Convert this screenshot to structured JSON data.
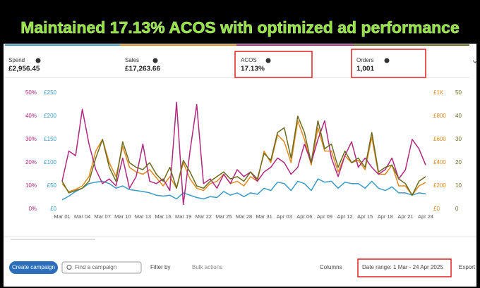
{
  "header": {
    "title": "Maintained 17.13% ACOS with optimized ad performance"
  },
  "metrics": [
    {
      "name": "Spend",
      "value": "£2,956.45"
    },
    {
      "name": "Sales",
      "value": "£17,263.66"
    },
    {
      "name": "ACOS",
      "value": "17.13%"
    },
    {
      "name": "Orders",
      "value": "1,001"
    }
  ],
  "chart_data": {
    "type": "line",
    "categories": [
      "Mar 01",
      null,
      null,
      "Mar 04",
      null,
      null,
      "Mar 07",
      null,
      null,
      "Mar 10",
      null,
      null,
      "Mar 13",
      null,
      null,
      "Mar 16",
      null,
      null,
      "Mar 19",
      null,
      null,
      "Mar 22",
      null,
      null,
      "Mar 25",
      null,
      null,
      "Mar 28",
      null,
      null,
      "Mar 31",
      null,
      null,
      "Apr 03",
      null,
      null,
      "Apr 06",
      null,
      null,
      "Apr 09",
      null,
      null,
      "Apr 12",
      null,
      null,
      "Apr 15",
      null,
      null,
      "Apr 18",
      null,
      null,
      "Apr 21",
      null,
      null,
      "Apr 24"
    ],
    "ylim": [
      0,
      50
    ],
    "yticks": [
      {
        "value": 0,
        "label": "0%"
      },
      {
        "value": 10,
        "label": "10%"
      },
      {
        "value": 20,
        "label": "20%"
      },
      {
        "value": 30,
        "label": "30%"
      },
      {
        "value": 40,
        "label": "40%"
      },
      {
        "value": 50,
        "label": "50%"
      }
    ],
    "ycolor": "#b0287f",
    "y2lim": [
      0,
      250
    ],
    "y2ticks": [
      {
        "value": 0,
        "label": "£0"
      },
      {
        "value": 50,
        "label": "£50"
      },
      {
        "value": 100,
        "label": "£100"
      },
      {
        "value": 150,
        "label": "£150"
      },
      {
        "value": 200,
        "label": "£200"
      },
      {
        "value": 250,
        "label": "£250"
      }
    ],
    "y2color": "#3a9bc4",
    "y3lim": [
      0,
      1000
    ],
    "y3ticks": [
      {
        "value": 0,
        "label": "£0"
      },
      {
        "value": 200,
        "label": "£200"
      },
      {
        "value": 400,
        "label": "£400"
      },
      {
        "value": 600,
        "label": "£600"
      },
      {
        "value": 800,
        "label": "£800"
      },
      {
        "value": 1000,
        "label": "£1K"
      }
    ],
    "y3color": "#e08a1e",
    "y4lim": [
      0,
      50
    ],
    "y4ticks": [
      0,
      10,
      20,
      30,
      40,
      50
    ],
    "y4color": "#6b6b1e",
    "series": [
      {
        "name": "Spend",
        "color": "#3a9bc4",
        "axis": "y2",
        "values": [
          20,
          28,
          38,
          45,
          55,
          58,
          60,
          55,
          45,
          50,
          42,
          40,
          38,
          35,
          30,
          28,
          30,
          22,
          35,
          30,
          25,
          22,
          27,
          25,
          38,
          30,
          35,
          27,
          35,
          32,
          45,
          40,
          58,
          55,
          40,
          60,
          55,
          40,
          65,
          58,
          60,
          45,
          58,
          55,
          55,
          45,
          60,
          45,
          40,
          48,
          35,
          35,
          30,
          35,
          33
        ]
      },
      {
        "name": "Sales",
        "color": "#e08a1e",
        "axis": "y3",
        "values": [
          220,
          150,
          170,
          200,
          280,
          500,
          600,
          400,
          280,
          540,
          360,
          320,
          300,
          340,
          270,
          200,
          280,
          180,
          400,
          260,
          180,
          160,
          220,
          240,
          300,
          220,
          240,
          200,
          280,
          240,
          500,
          400,
          640,
          580,
          400,
          760,
          600,
          380,
          700,
          500,
          500,
          320,
          460,
          400,
          420,
          340,
          620,
          300,
          300,
          380,
          200,
          200,
          120,
          200,
          230
        ]
      },
      {
        "name": "ACOS",
        "color": "#b0287f",
        "axis": "y",
        "values": [
          12,
          25,
          23,
          43,
          28,
          17,
          11,
          13,
          10,
          22,
          9,
          14,
          28,
          12,
          11,
          13,
          8,
          46,
          2,
          25,
          45,
          11,
          13,
          9,
          15,
          11,
          17,
          14,
          16,
          12,
          16,
          18,
          22,
          20,
          15,
          18,
          28,
          20,
          30,
          38,
          22,
          14,
          23,
          29,
          18,
          22,
          18,
          15,
          17,
          22,
          13,
          17,
          30,
          26,
          19
        ]
      },
      {
        "name": "Orders",
        "color": "#6b6b1e",
        "axis": "y4",
        "values": [
          12,
          7,
          8,
          9,
          12,
          22,
          30,
          18,
          12,
          29,
          20,
          18,
          17,
          20,
          15,
          12,
          18,
          9,
          21,
          16,
          10,
          9,
          12,
          14,
          16,
          13,
          14,
          12,
          16,
          13,
          24,
          21,
          33,
          35,
          22,
          40,
          33,
          20,
          38,
          26,
          28,
          18,
          25,
          20,
          22,
          18,
          33,
          16,
          18,
          19,
          13,
          11,
          6,
          12,
          14
        ]
      }
    ]
  },
  "toolbar": {
    "create": "Create campaign",
    "search": "Find a campaign",
    "filter": "Filter by",
    "bulk": "Bulk actions",
    "columns": "Columns",
    "date_range": "Date range: 1 Mar - 24 Apr 2025",
    "export": "Export"
  }
}
